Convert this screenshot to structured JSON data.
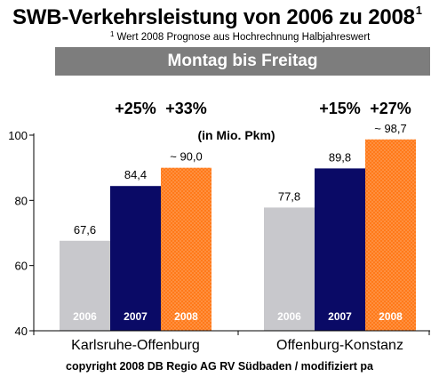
{
  "header": {
    "title": "SWB-Verkehrsleistung von 2006 zu 2008",
    "title_sup": "1",
    "footnote_mark": "1",
    "footnote": "Wert 2008 Prognose aus Hochrechnung Halbjahreswert"
  },
  "banner": {
    "label": "Montag bis Freitag"
  },
  "unit_label": "(in Mio. Pkm)",
  "copyright": "copyright 2008 DB Regio AG RV Südbaden / modifiziert pa",
  "chart_data": {
    "type": "bar",
    "categories": [
      "Karlsruhe-Offenburg",
      "Offenburg-Konstanz"
    ],
    "series": [
      {
        "name": "2006",
        "values": [
          67.6,
          77.8
        ],
        "value_labels": [
          "67,6",
          "77,8"
        ],
        "color": "#c8c8cc"
      },
      {
        "name": "2007",
        "values": [
          84.4,
          89.8
        ],
        "value_labels": [
          "84,4",
          "89,8"
        ],
        "color": "#0a0a66"
      },
      {
        "name": "2008",
        "values": [
          90.0,
          98.7
        ],
        "value_labels": [
          "~ 90,0",
          "~ 98,7"
        ],
        "color": "#ff7a1a"
      }
    ],
    "growth_labels": [
      {
        "series": "2007",
        "values": [
          "+25%",
          "+15%"
        ]
      },
      {
        "series": "2008",
        "values": [
          "+33%",
          "+27%"
        ]
      }
    ],
    "ylim": [
      40,
      100
    ],
    "yticks": [
      40,
      60,
      80,
      100
    ],
    "grid": false,
    "legend": "inside-bars"
  }
}
